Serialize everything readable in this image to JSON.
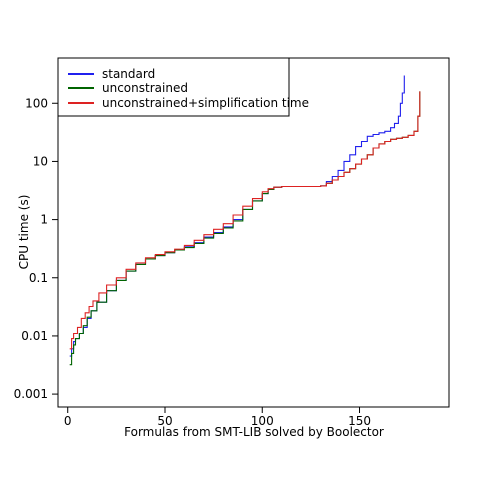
{
  "chart_data": {
    "type": "line",
    "title": "",
    "xlabel": "Formulas from SMT-LIB solved by Boolector",
    "ylabel": "CPU time (s)",
    "xlim": [
      -5,
      196
    ],
    "ylim": [
      0.0006,
      600
    ],
    "yscale": "log",
    "step": true,
    "grid": false,
    "legend_position": "top-left",
    "x_ticks": [
      0,
      50,
      100,
      150
    ],
    "x_tick_labels": [
      "0",
      "50",
      "100",
      "150"
    ],
    "y_ticks": [
      0.001,
      0.01,
      0.1,
      1,
      10,
      100
    ],
    "y_tick_labels": [
      "0.001",
      "0.01",
      "0.1",
      "1",
      "10",
      "100"
    ],
    "series": [
      {
        "name": "standard",
        "color": "#2020ee",
        "points": [
          [
            1,
            0.0045
          ],
          [
            2,
            0.006
          ],
          [
            3,
            0.008
          ],
          [
            4,
            0.009
          ],
          [
            6,
            0.011
          ],
          [
            8,
            0.014
          ],
          [
            10,
            0.02
          ],
          [
            12,
            0.027
          ],
          [
            15,
            0.038
          ],
          [
            20,
            0.06
          ],
          [
            25,
            0.09
          ],
          [
            30,
            0.13
          ],
          [
            35,
            0.17
          ],
          [
            40,
            0.21
          ],
          [
            45,
            0.24
          ],
          [
            50,
            0.27
          ],
          [
            55,
            0.3
          ],
          [
            60,
            0.34
          ],
          [
            65,
            0.4
          ],
          [
            70,
            0.5
          ],
          [
            75,
            0.6
          ],
          [
            80,
            0.75
          ],
          [
            85,
            1.0
          ],
          [
            90,
            1.5
          ],
          [
            95,
            2.1
          ],
          [
            100,
            2.8
          ],
          [
            103,
            3.3
          ],
          [
            106,
            3.6
          ],
          [
            110,
            3.7
          ],
          [
            120,
            3.7
          ],
          [
            130,
            3.8
          ],
          [
            133,
            4.5
          ],
          [
            136,
            5.5
          ],
          [
            139,
            7
          ],
          [
            142,
            10
          ],
          [
            145,
            13
          ],
          [
            148,
            18
          ],
          [
            151,
            22
          ],
          [
            154,
            27
          ],
          [
            157,
            29
          ],
          [
            160,
            31
          ],
          [
            163,
            33
          ],
          [
            166,
            38
          ],
          [
            168,
            45
          ],
          [
            170,
            60
          ],
          [
            171,
            100
          ],
          [
            172,
            150
          ],
          [
            173,
            300
          ]
        ]
      },
      {
        "name": "unconstrained",
        "color": "#006400",
        "points": [
          [
            1,
            0.0032
          ],
          [
            2,
            0.005
          ],
          [
            3,
            0.007
          ],
          [
            4,
            0.009
          ],
          [
            6,
            0.011
          ],
          [
            8,
            0.015
          ],
          [
            10,
            0.021
          ],
          [
            12,
            0.027
          ],
          [
            15,
            0.038
          ],
          [
            20,
            0.06
          ],
          [
            25,
            0.09
          ],
          [
            30,
            0.13
          ],
          [
            35,
            0.17
          ],
          [
            40,
            0.21
          ],
          [
            45,
            0.24
          ],
          [
            50,
            0.27
          ],
          [
            55,
            0.3
          ],
          [
            60,
            0.33
          ],
          [
            65,
            0.39
          ],
          [
            70,
            0.48
          ],
          [
            75,
            0.58
          ],
          [
            80,
            0.72
          ],
          [
            85,
            0.95
          ],
          [
            90,
            1.5
          ],
          [
            95,
            2.1
          ],
          [
            100,
            2.8
          ],
          [
            103,
            3.3
          ],
          [
            106,
            3.6
          ],
          [
            110,
            3.7
          ],
          [
            120,
            3.7
          ],
          [
            130,
            3.8
          ],
          [
            133,
            4.2
          ],
          [
            136,
            4.8
          ],
          [
            139,
            5.5
          ],
          [
            142,
            6.5
          ],
          [
            145,
            7.5
          ],
          [
            148,
            9
          ],
          [
            151,
            11
          ],
          [
            154,
            13
          ],
          [
            157,
            17
          ],
          [
            160,
            20
          ],
          [
            163,
            22
          ],
          [
            166,
            24
          ],
          [
            169,
            25
          ],
          [
            172,
            26
          ],
          [
            175,
            28
          ],
          [
            178,
            33
          ],
          [
            180,
            60
          ],
          [
            181,
            160
          ]
        ]
      },
      {
        "name": "unconstrained+simplification time",
        "color": "#dd2222",
        "points": [
          [
            1,
            0.006
          ],
          [
            2,
            0.009
          ],
          [
            3,
            0.011
          ],
          [
            5,
            0.014
          ],
          [
            7,
            0.02
          ],
          [
            9,
            0.025
          ],
          [
            11,
            0.032
          ],
          [
            13,
            0.04
          ],
          [
            16,
            0.055
          ],
          [
            20,
            0.075
          ],
          [
            25,
            0.1
          ],
          [
            30,
            0.14
          ],
          [
            35,
            0.18
          ],
          [
            40,
            0.22
          ],
          [
            45,
            0.25
          ],
          [
            50,
            0.28
          ],
          [
            55,
            0.31
          ],
          [
            60,
            0.36
          ],
          [
            65,
            0.44
          ],
          [
            70,
            0.55
          ],
          [
            75,
            0.68
          ],
          [
            80,
            0.85
          ],
          [
            85,
            1.2
          ],
          [
            90,
            1.7
          ],
          [
            95,
            2.3
          ],
          [
            100,
            3.0
          ],
          [
            103,
            3.4
          ],
          [
            106,
            3.6
          ],
          [
            110,
            3.7
          ],
          [
            120,
            3.7
          ],
          [
            130,
            3.8
          ],
          [
            133,
            4.2
          ],
          [
            136,
            4.8
          ],
          [
            139,
            5.5
          ],
          [
            142,
            6.5
          ],
          [
            145,
            7.5
          ],
          [
            148,
            9
          ],
          [
            151,
            11
          ],
          [
            154,
            13
          ],
          [
            157,
            17
          ],
          [
            160,
            20
          ],
          [
            163,
            22
          ],
          [
            166,
            24
          ],
          [
            169,
            25
          ],
          [
            172,
            26
          ],
          [
            175,
            28
          ],
          [
            178,
            33
          ],
          [
            180,
            60
          ],
          [
            181,
            160
          ]
        ]
      }
    ]
  }
}
